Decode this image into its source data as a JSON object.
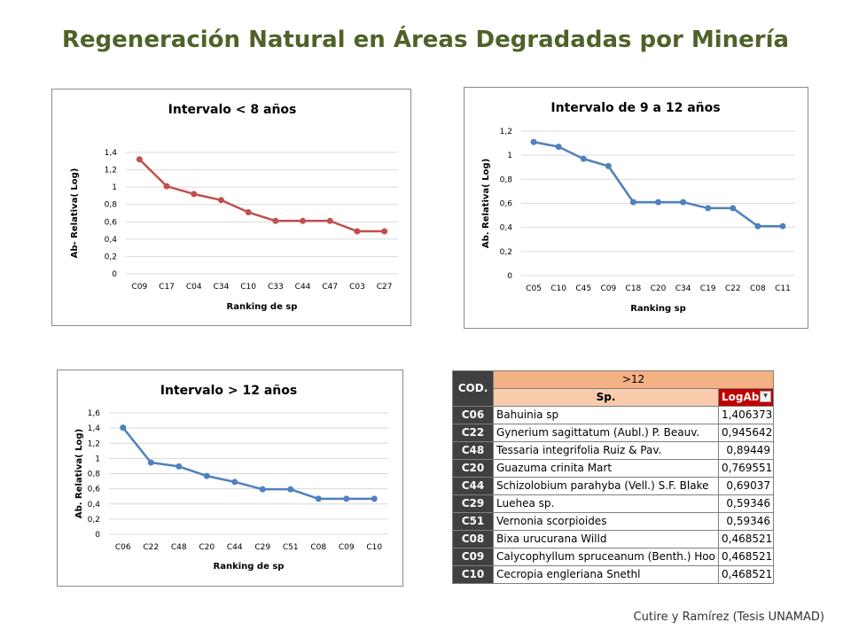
{
  "title": "Regeneración Natural en Áreas Degradadas por Minería",
  "footer": "Cutire y Ramírez (Tesis UNAMAD)",
  "chart_data": [
    {
      "type": "line",
      "title": "Intervalo < 8 años",
      "xlabel": "Ranking de sp",
      "ylabel": "Ab- Relativa( Log)",
      "categories": [
        "C09",
        "C17",
        "C04",
        "C34",
        "C10",
        "C33",
        "C44",
        "C47",
        "C03",
        "C27"
      ],
      "values": [
        1.32,
        1.01,
        0.92,
        0.85,
        0.71,
        0.61,
        0.61,
        0.61,
        0.49,
        0.49
      ],
      "ylim": [
        0,
        1.4
      ],
      "yticks": [
        "0",
        "0,2",
        "0,4",
        "0,6",
        "0,8",
        "1",
        "1,2",
        "1,4"
      ],
      "color": "#c0504d",
      "grid": true
    },
    {
      "type": "line",
      "title": "Intervalo de 9 a 12 años",
      "xlabel": "Ranking sp",
      "ylabel": "Ab. Relativa( Log)",
      "categories": [
        "C05",
        "C10",
        "C45",
        "C09",
        "C18",
        "C20",
        "C34",
        "C19",
        "C22",
        "C08",
        "C11"
      ],
      "values": [
        1.11,
        1.07,
        0.97,
        0.91,
        0.61,
        0.61,
        0.61,
        0.56,
        0.56,
        0.41,
        0.41
      ],
      "ylim": [
        0,
        1.2
      ],
      "yticks": [
        "0",
        "0,2",
        "0,4",
        "0,6",
        "0,8",
        "1",
        "1,2"
      ],
      "color": "#4f81bd",
      "grid": true
    },
    {
      "type": "line",
      "title": "Intervalo > 12 años",
      "xlabel": "Ranking de sp",
      "ylabel": "Ab. Relativa( Log)",
      "categories": [
        "C06",
        "C22",
        "C48",
        "C20",
        "C44",
        "C29",
        "C51",
        "C08",
        "C09",
        "C10"
      ],
      "values": [
        1.406373,
        0.945642,
        0.89449,
        0.769551,
        0.69037,
        0.59346,
        0.59346,
        0.468521,
        0.468521,
        0.468521
      ],
      "ylim": [
        0,
        1.6
      ],
      "yticks": [
        "0",
        "0,2",
        "0,4",
        "0,6",
        "0,8",
        "1",
        "1,2",
        "1,4",
        "1,6"
      ],
      "color": "#4f81bd",
      "grid": true
    }
  ],
  "table": {
    "cod_header": "COD.",
    "group_header": ">12",
    "sp_header": "Sp.",
    "log_header": "LogAb",
    "filter_icon": "filter-dropdown-icon",
    "rows": [
      {
        "cod": "C06",
        "sp": "Bahuinia sp",
        "log": "1,406373"
      },
      {
        "cod": "C22",
        "sp": "Gynerium sagittatum (Aubl.) P. Beauv.",
        "log": "0,945642"
      },
      {
        "cod": "C48",
        "sp": "Tessaria integrifolia Ruiz & Pav.",
        "log": "0,89449"
      },
      {
        "cod": "C20",
        "sp": "Guazuma crinita  Mart",
        "log": "0,769551"
      },
      {
        "cod": "C44",
        "sp": "Schizolobium parahyba (Vell.) S.F. Blake",
        "log": "0,69037"
      },
      {
        "cod": "C29",
        "sp": "Luehea sp.",
        "log": "0,59346"
      },
      {
        "cod": "C51",
        "sp": "Vernonia scorpioides",
        "log": "0,59346"
      },
      {
        "cod": "C08",
        "sp": "Bixa urucurana Willd",
        "log": "0,468521"
      },
      {
        "cod": "C09",
        "sp": "Calycophyllum spruceanum (Benth.) Hoo",
        "log": "0,468521"
      },
      {
        "cod": "C10",
        "sp": "Cecropia engleriana Snethl",
        "log": "0,468521"
      }
    ]
  }
}
